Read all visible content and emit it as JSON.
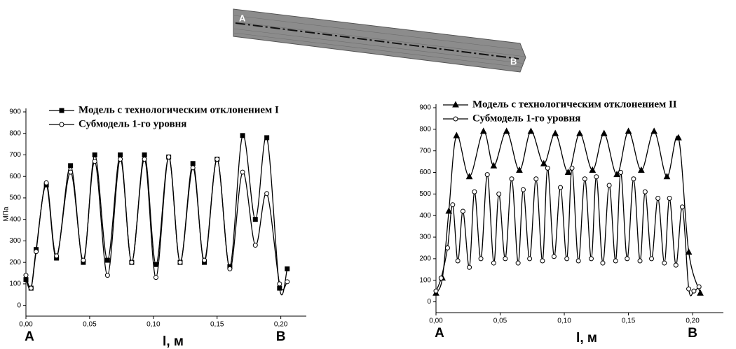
{
  "figure": {
    "label_a": "A",
    "label_b": "B"
  },
  "chart_data": [
    {
      "type": "line",
      "y_label": "МПа",
      "x_label": "l, м",
      "end_labels": [
        "A",
        "B"
      ],
      "xlim": [
        0,
        0.22
      ],
      "ylim": [
        -50,
        900
      ],
      "xticks": [
        {
          "value": 0,
          "label": "0,00"
        },
        {
          "value": 0.05,
          "label": "0,05"
        },
        {
          "value": 0.1,
          "label": "0,10"
        },
        {
          "value": 0.15,
          "label": "0,15"
        },
        {
          "value": 0.2,
          "label": "0,20"
        }
      ],
      "yticks": [
        0,
        100,
        200,
        300,
        400,
        500,
        600,
        700,
        800,
        900
      ],
      "series": [
        {
          "name": "Модель с технологическим отклонением I",
          "color": "#000000",
          "marker": "square",
          "x": [
            0,
            0.004,
            0.008,
            0.016,
            0.024,
            0.035,
            0.045,
            0.054,
            0.064,
            0.074,
            0.083,
            0.093,
            0.102,
            0.112,
            0.121,
            0.131,
            0.14,
            0.15,
            0.16,
            0.17,
            0.18,
            0.189,
            0.199,
            0.205
          ],
          "values": [
            120,
            80,
            260,
            560,
            220,
            650,
            200,
            700,
            210,
            700,
            200,
            700,
            190,
            690,
            200,
            660,
            200,
            680,
            180,
            790,
            400,
            780,
            80,
            170
          ]
        },
        {
          "name": "Субмодель 1-го уровня",
          "color": "#000000",
          "marker": "circle",
          "x": [
            0,
            0.004,
            0.008,
            0.016,
            0.024,
            0.035,
            0.045,
            0.054,
            0.064,
            0.074,
            0.083,
            0.093,
            0.102,
            0.112,
            0.121,
            0.131,
            0.14,
            0.15,
            0.16,
            0.17,
            0.18,
            0.189,
            0.199,
            0.205
          ],
          "values": [
            140,
            80,
            250,
            570,
            230,
            620,
            210,
            670,
            140,
            680,
            200,
            680,
            130,
            690,
            200,
            640,
            210,
            680,
            170,
            620,
            280,
            520,
            100,
            110
          ]
        }
      ]
    },
    {
      "type": "line",
      "x_label": "l, м",
      "end_labels": [
        "A",
        "B"
      ],
      "xlim": [
        0,
        0.224
      ],
      "ylim": [
        -50,
        900
      ],
      "xticks": [
        {
          "value": 0,
          "label": "0,00"
        },
        {
          "value": 0.05,
          "label": "0,05"
        },
        {
          "value": 0.1,
          "label": "0,10"
        },
        {
          "value": 0.15,
          "label": "0,15"
        },
        {
          "value": 0.2,
          "label": "0,20"
        }
      ],
      "yticks": [
        0,
        100,
        200,
        300,
        400,
        500,
        600,
        700,
        800,
        900
      ],
      "series": [
        {
          "name": "Модель с технологическим отклонением II",
          "color": "#000000",
          "marker": "triangle",
          "x": [
            0,
            0.005,
            0.01,
            0.016,
            0.026,
            0.037,
            0.045,
            0.055,
            0.065,
            0.074,
            0.084,
            0.093,
            0.103,
            0.112,
            0.122,
            0.131,
            0.141,
            0.15,
            0.16,
            0.17,
            0.18,
            0.189,
            0.197,
            0.206
          ],
          "values": [
            40,
            110,
            420,
            770,
            580,
            790,
            630,
            790,
            610,
            790,
            640,
            780,
            600,
            780,
            610,
            780,
            590,
            790,
            610,
            790,
            580,
            760,
            230,
            40
          ]
        },
        {
          "name": "Субмодель 1-го уровня",
          "color": "#000000",
          "marker": "circle",
          "x": [
            0,
            0.004,
            0.009,
            0.013,
            0.017,
            0.021,
            0.026,
            0.03,
            0.035,
            0.04,
            0.045,
            0.049,
            0.054,
            0.059,
            0.064,
            0.068,
            0.073,
            0.078,
            0.083,
            0.087,
            0.092,
            0.097,
            0.102,
            0.106,
            0.111,
            0.116,
            0.121,
            0.125,
            0.13,
            0.135,
            0.14,
            0.144,
            0.149,
            0.154,
            0.159,
            0.163,
            0.168,
            0.173,
            0.178,
            0.182,
            0.187,
            0.192,
            0.197,
            0.201,
            0.205
          ],
          "values": [
            50,
            110,
            250,
            450,
            190,
            420,
            160,
            510,
            200,
            590,
            180,
            500,
            200,
            570,
            180,
            520,
            200,
            570,
            190,
            620,
            210,
            530,
            200,
            620,
            190,
            570,
            200,
            580,
            180,
            540,
            190,
            600,
            200,
            570,
            190,
            510,
            200,
            480,
            180,
            480,
            170,
            440,
            60,
            50,
            70
          ]
        }
      ]
    }
  ]
}
